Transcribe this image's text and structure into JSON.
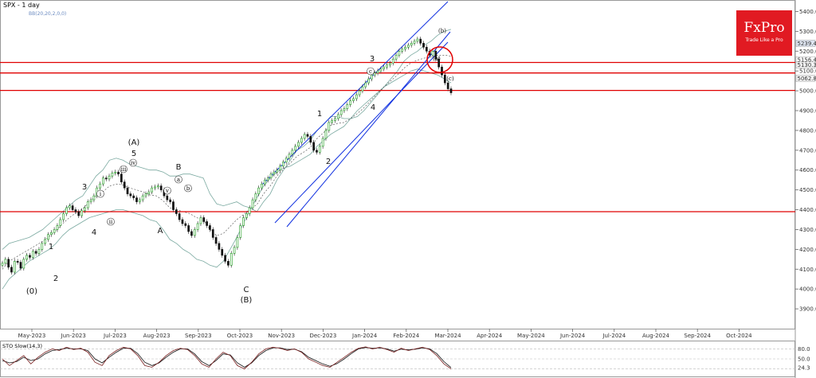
{
  "header": {
    "symbol_label": "SPX - 1 day",
    "indicator_label": "BB(20,20,2,0,0)"
  },
  "logo": {
    "brand": "FxPro",
    "tagline": "Trade Like a Pro"
  },
  "colors": {
    "up": "#1a9a1a",
    "down": "#111111",
    "channel": "#1030e0",
    "support": "#e00000",
    "bands": "#7aa9a0",
    "stoch_k": "#7a2020",
    "stoch_d": "#111111"
  },
  "chart_data": [
    {
      "type": "candlestick",
      "title": "SPX - 1 day",
      "ylim": [
        3800,
        5450
      ],
      "x_tick_labels": [
        "May-2023",
        "Jun-2023",
        "Jul-2023",
        "Aug-2023",
        "Sep-2023",
        "Oct-2023",
        "Nov-2023",
        "Dec-2023",
        "Jan-2024",
        "Feb-2024",
        "Mar-2024",
        "Apr-2024",
        "May-2024",
        "Jun-2024",
        "Jul-2024",
        "Aug-2024",
        "Sep-2024",
        "Oct-2024"
      ],
      "y_tick_labels": [
        "3900.0",
        "4000.0",
        "4100.0",
        "4200.0",
        "4300.0",
        "4400.0",
        "4500.0",
        "4600.0",
        "4700.0",
        "4800.0",
        "4900.0",
        "5000.0",
        "5100.0",
        "5200.0",
        "5300.0",
        "5400.0"
      ],
      "price_tags": [
        "5239.4",
        "5156.4",
        "5130.3",
        "5062.8"
      ],
      "horizontal_levels": [
        5143,
        5090,
        5002,
        4390
      ],
      "close_series": [
        4130,
        4150,
        4110,
        4085,
        4140,
        4135,
        4105,
        4150,
        4170,
        4160,
        4190,
        4180,
        4200,
        4230,
        4250,
        4275,
        4285,
        4300,
        4320,
        4350,
        4380,
        4410,
        4420,
        4400,
        4390,
        4370,
        4395,
        4410,
        4440,
        4450,
        4470,
        4510,
        4530,
        4560,
        4555,
        4570,
        4585,
        4590,
        4580,
        4540,
        4510,
        4480,
        4470,
        4460,
        4440,
        4450,
        4470,
        4480,
        4490,
        4510,
        4515,
        4520,
        4500,
        4470,
        4450,
        4440,
        4400,
        4380,
        4350,
        4330,
        4320,
        4290,
        4270,
        4300,
        4330,
        4360,
        4340,
        4320,
        4300,
        4260,
        4230,
        4200,
        4170,
        4140,
        4120,
        4180,
        4210,
        4260,
        4320,
        4360,
        4380,
        4410,
        4450,
        4480,
        4510,
        4530,
        4550,
        4560,
        4580,
        4590,
        4600,
        4620,
        4640,
        4660,
        4680,
        4700,
        4720,
        4740,
        4760,
        4780,
        4770,
        4740,
        4700,
        4690,
        4720,
        4760,
        4800,
        4840,
        4850,
        4860,
        4880,
        4900,
        4910,
        4930,
        4950,
        4960,
        4980,
        5000,
        5020,
        5040,
        5060,
        5080,
        5090,
        5100,
        5110,
        5120,
        5130,
        5140,
        5160,
        5180,
        5200,
        5210,
        5220,
        5230,
        5240,
        5250,
        5261,
        5240,
        5220,
        5200,
        5180,
        5200,
        5160,
        5120,
        5080,
        5040,
        5010,
        4990
      ],
      "upper_band": [
        4200,
        4230,
        4240,
        4250,
        4260,
        4280,
        4300,
        4330,
        4360,
        4390,
        4420,
        4450,
        4470,
        4520,
        4570,
        4600,
        4650,
        4660,
        4650,
        4630,
        4620,
        4610,
        4600,
        4600,
        4590,
        4570,
        4570,
        4580,
        4580,
        4570,
        4560,
        4480,
        4430,
        4420,
        4430,
        4440,
        4420,
        4410,
        4390,
        4440,
        4480,
        4550,
        4600,
        4650,
        4700,
        4720,
        4750,
        4800,
        4830,
        4870,
        4870,
        4860,
        4860,
        4870,
        4900,
        4940,
        4980,
        5020,
        5060,
        5100,
        5150,
        5180,
        5200,
        5230,
        5250,
        5280,
        5300,
        5310
      ],
      "lower_band": [
        4000,
        4050,
        4080,
        4110,
        4140,
        4160,
        4180,
        4200,
        4230,
        4270,
        4300,
        4320,
        4340,
        4360,
        4370,
        4380,
        4390,
        4400,
        4400,
        4390,
        4380,
        4370,
        4350,
        4340,
        4300,
        4250,
        4230,
        4200,
        4180,
        4150,
        4140,
        4120,
        4110,
        4140,
        4200,
        4260,
        4330,
        4400,
        4460,
        4520,
        4560,
        4590,
        4610,
        4620,
        4640,
        4660,
        4680,
        4720,
        4750,
        4780,
        4800,
        4820,
        4860,
        4900,
        4930,
        4960,
        4990,
        5020,
        5040,
        5060,
        5080,
        5100,
        5110,
        5100,
        5090,
        5080,
        5060,
        5040
      ],
      "wave_labels": [
        "(0)",
        "1",
        "2",
        "3",
        "4",
        "5",
        "(A)",
        "A",
        "B",
        "C",
        "(B)",
        "1",
        "2",
        "3",
        "4",
        "i",
        "ii",
        "iii",
        "iv",
        "v",
        "a",
        "b",
        "c",
        "(a)",
        "(b)",
        "(c)"
      ]
    },
    {
      "type": "line",
      "title": "STO Slow(14,3)",
      "ylim": [
        0,
        100
      ],
      "y_tick_labels": [
        "80.0",
        "50.0",
        "24.3"
      ],
      "k_series": [
        50,
        30,
        45,
        60,
        35,
        55,
        70,
        80,
        75,
        85,
        78,
        82,
        70,
        40,
        30,
        60,
        75,
        85,
        80,
        60,
        30,
        25,
        40,
        60,
        75,
        82,
        78,
        60,
        35,
        25,
        50,
        70,
        60,
        30,
        20,
        40,
        65,
        80,
        85,
        82,
        75,
        80,
        70,
        50,
        40,
        30,
        25,
        40,
        55,
        70,
        82,
        86,
        80,
        85,
        78,
        70,
        82,
        75,
        80,
        85,
        78,
        60,
        35,
        20
      ],
      "d_series": [
        45,
        38,
        42,
        55,
        45,
        50,
        65,
        75,
        78,
        82,
        80,
        80,
        75,
        50,
        38,
        55,
        70,
        82,
        82,
        66,
        40,
        30,
        38,
        55,
        70,
        80,
        80,
        65,
        42,
        30,
        45,
        65,
        62,
        38,
        25,
        38,
        60,
        75,
        83,
        83,
        78,
        79,
        72,
        55,
        45,
        35,
        28,
        36,
        50,
        66,
        80,
        84,
        82,
        83,
        80,
        73,
        79,
        77,
        79,
        83,
        80,
        66,
        42,
        24
      ]
    }
  ]
}
